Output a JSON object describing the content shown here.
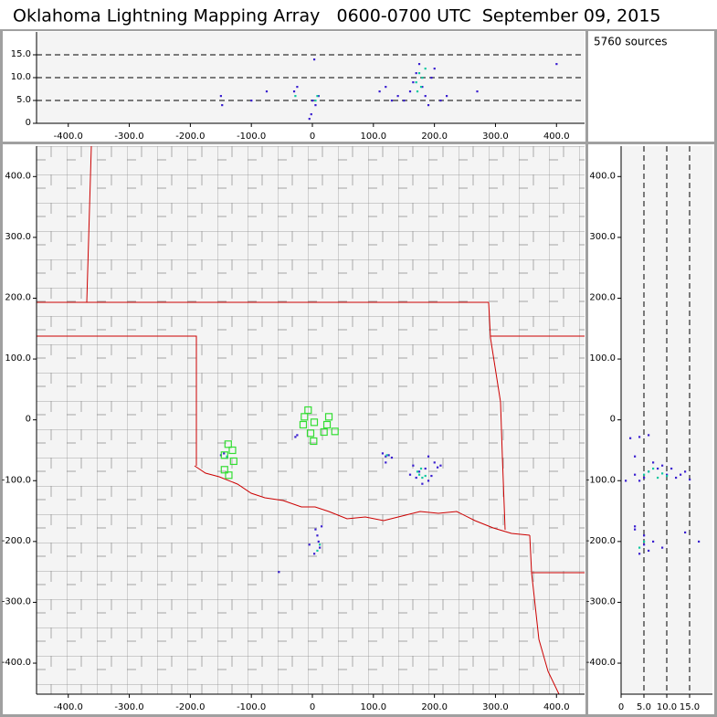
{
  "title": "Oklahoma Lightning Mapping Array   0600-0700 UTC  September 09, 2015",
  "source_count": "5760 sources",
  "chart_data": [
    {
      "type": "scatter",
      "grid": true,
      "grid_axis": "y",
      "xlim": [
        -452,
        446
      ],
      "ylim": [
        0,
        20
      ],
      "xticks": [
        {
          "value": -400,
          "label": "-400.0"
        },
        {
          "value": -300,
          "label": "-300.0"
        },
        {
          "value": -200,
          "label": "-200.0"
        },
        {
          "value": -100,
          "label": "-100.0"
        },
        0,
        {
          "value": 100,
          "label": "100.0"
        },
        {
          "value": 200,
          "label": "200.0"
        },
        {
          "value": 300,
          "label": "300.0"
        },
        {
          "value": 400,
          "label": "400.0"
        }
      ],
      "yticks": [
        0,
        {
          "value": 5,
          "label": "5.0"
        },
        {
          "value": 10,
          "label": "10.0"
        },
        {
          "value": 15,
          "label": "15.0"
        }
      ],
      "series": [
        {
          "color": "#3a1fd0",
          "marker": "dot",
          "x": [
            150,
            160,
            165,
            170,
            175,
            180,
            185,
            190,
            195,
            200,
            140,
            130,
            120,
            110,
            210,
            220,
            -150,
            -148,
            -30,
            -25,
            0,
            5,
            10,
            3,
            -2,
            -75,
            -100,
            270,
            400,
            -5
          ],
          "values": [
            5,
            7,
            9,
            11,
            13,
            8,
            6,
            4,
            10,
            12,
            6,
            5,
            8,
            7,
            5,
            6,
            6,
            4,
            7,
            8,
            5,
            4,
            6,
            14,
            2,
            7,
            5,
            7,
            13,
            1
          ]
        },
        {
          "color": "#10c8a0",
          "marker": "dot",
          "x": [
            170,
            175,
            178,
            180,
            172,
            185,
            5,
            8,
            -28
          ],
          "values": [
            9,
            11,
            8,
            10,
            7,
            12,
            5,
            6,
            6
          ]
        }
      ]
    },
    {
      "type": "scatter",
      "grid": false,
      "xlim": [
        -452,
        446
      ],
      "ylim": [
        -451,
        450
      ],
      "xticks": [
        {
          "value": -400,
          "label": "-400.0"
        },
        {
          "value": -300,
          "label": "-300.0"
        },
        {
          "value": -200,
          "label": "-200.0"
        },
        {
          "value": -100,
          "label": "-100.0"
        },
        0,
        {
          "value": 100,
          "label": "100.0"
        },
        {
          "value": 200,
          "label": "200.0"
        },
        {
          "value": 300,
          "label": "300.0"
        },
        {
          "value": 400,
          "label": "400.0"
        }
      ],
      "yticks": [
        {
          "value": -400,
          "label": "-400.0"
        },
        {
          "value": -300,
          "label": "-300.0"
        },
        {
          "value": -200,
          "label": "-200.0"
        },
        {
          "value": -100,
          "label": "-100.0"
        },
        0,
        {
          "value": 100,
          "label": "100.0"
        },
        {
          "value": 200,
          "label": "200.0"
        },
        {
          "value": 300,
          "label": "300.0"
        },
        {
          "value": 400,
          "label": "400.0"
        }
      ],
      "series": [
        {
          "color": "#3a1fd0",
          "marker": "dot",
          "x": [
            170,
            175,
            185,
            190,
            160,
            165,
            200,
            205,
            180,
            195,
            115,
            120,
            125,
            130,
            -150,
            -145,
            -140,
            -25,
            -28,
            5,
            8,
            10,
            12,
            15,
            3,
            -5,
            -55,
            120,
            190,
            210
          ],
          "values": [
            -95,
            -85,
            -80,
            -100,
            -90,
            -75,
            -70,
            -78,
            -105,
            -92,
            -55,
            -60,
            -58,
            -62,
            -58,
            -55,
            -62,
            -25,
            -28,
            -180,
            -190,
            -200,
            -210,
            -175,
            -220,
            -205,
            -250,
            -70,
            -60,
            -75
          ]
        },
        {
          "color": "#10c8a0",
          "marker": "dot",
          "x": [
            175,
            180,
            172,
            185,
            178,
            12,
            8,
            -140,
            122
          ],
          "values": [
            -90,
            -95,
            -85,
            -92,
            -80,
            -205,
            -215,
            -60,
            -58
          ]
        },
        {
          "color": "#33dd33",
          "marker": "square",
          "x": [
            -7,
            3,
            -15,
            27,
            24,
            37,
            19,
            -3,
            2,
            -13,
            -138,
            -131,
            -144,
            -129,
            -144,
            -137
          ],
          "values": [
            16,
            -4,
            -8,
            5,
            -8,
            -19,
            -20,
            -22,
            -35,
            5,
            -40,
            -50,
            -58,
            -68,
            -82,
            -91
          ]
        }
      ]
    },
    {
      "type": "scatter",
      "grid": true,
      "grid_axis": "x",
      "xlim": [
        0,
        20
      ],
      "ylim": [
        -451,
        450
      ],
      "xticks": [
        0,
        {
          "value": 5,
          "label": "5.0"
        },
        {
          "value": 10,
          "label": "10.0"
        },
        {
          "value": 15,
          "label": "15.0"
        }
      ],
      "yticks": [
        {
          "value": -400,
          "label": "-400.0"
        },
        {
          "value": -300,
          "label": "-300.0"
        },
        {
          "value": -200,
          "label": "-200.0"
        },
        {
          "value": -100,
          "label": "-100.0"
        },
        0,
        {
          "value": 100,
          "label": "100.0"
        },
        {
          "value": 200,
          "label": "200.0"
        },
        {
          "value": 300,
          "label": "300.0"
        },
        {
          "value": 400,
          "label": "400.0"
        }
      ],
      "series": [
        {
          "color": "#3a1fd0",
          "marker": "dot",
          "x": [
            3,
            5,
            6,
            8,
            10,
            12,
            14,
            4,
            7,
            9,
            11,
            13,
            3,
            5,
            7,
            9,
            2,
            4,
            6,
            3,
            4,
            5,
            6,
            3,
            14,
            1,
            15,
            17
          ],
          "values": [
            -90,
            -95,
            -85,
            -80,
            -90,
            -95,
            -85,
            -100,
            -70,
            -75,
            -80,
            -90,
            -180,
            -190,
            -200,
            -210,
            -30,
            -28,
            -25,
            -175,
            -220,
            -205,
            -215,
            -60,
            -185,
            -100,
            -98,
            -200
          ]
        },
        {
          "color": "#10c8a0",
          "marker": "dot",
          "x": [
            5,
            6,
            8,
            9,
            10,
            7,
            4,
            5
          ],
          "values": [
            -90,
            -85,
            -95,
            -88,
            -92,
            -80,
            -210,
            -200
          ]
        }
      ]
    }
  ]
}
